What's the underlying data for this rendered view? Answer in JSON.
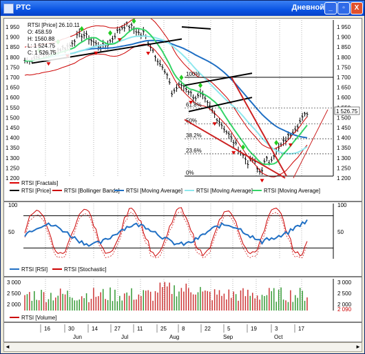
{
  "window": {
    "title": "РТС",
    "mode_label": "Дневной",
    "minimize": "_",
    "restore": "▫",
    "close": "X"
  },
  "colors": {
    "price": "#000000",
    "bollinger": "#cc0000",
    "ma_blue": "#1f6fc4",
    "ma_cyan": "#8ee8ee",
    "ma_green": "#33d466",
    "fractal": "#dd0000",
    "fractal_up": "#22cc22",
    "rsi": "#1f6fc4",
    "stoch": "#cc0000",
    "vol_up": "#339933",
    "vol_down": "#cc3333"
  },
  "price_panel": {
    "info_lines": [
      "RTSI [Price] 26.10.11",
      "O: 458.59",
      "H: 1560.88",
      "L: 1 524.75",
      "C: 1 526.75"
    ],
    "y_ticks": [
      "1 950",
      "1 900",
      "1 850",
      "1 800",
      "1 750",
      "1 700",
      "1 650",
      "1 600",
      "1 550",
      "1 500",
      "1 450",
      "1 400",
      "1 350",
      "1 300",
      "1 250",
      "1 200"
    ],
    "last_price": "1 526.75",
    "fib_labels": [
      "100%",
      "61.8%",
      "50%",
      "38.2%",
      "23.6%",
      "0%"
    ],
    "legend": [
      {
        "label": "RTSI [Fractals]",
        "color": "#dd0000"
      },
      {
        "label": "RTSI [Price]",
        "color": "#000000"
      },
      {
        "label": "RTSI [Bollinger Bands]",
        "color": "#cc0000"
      },
      {
        "label": "RTSI [Moving Average]",
        "color": "#1f6fc4"
      },
      {
        "label": "RTSI [Moving Average]",
        "color": "#8ee8ee"
      },
      {
        "label": "RTSI [Moving Average]",
        "color": "#33d466"
      }
    ]
  },
  "rsi_panel": {
    "y_ticks": [
      "100",
      "50",
      "0"
    ],
    "legend": [
      {
        "label": "RTSI [RSI]",
        "color": "#1f6fc4"
      },
      {
        "label": "RTSI [Stochastic]",
        "color": "#cc0000"
      }
    ]
  },
  "volume_panel": {
    "y_ticks": [
      "3 000",
      "2 500",
      "2 000"
    ],
    "last_value": "2 090",
    "legend": [
      {
        "label": "RTSI [Volume]",
        "color": "#cc0000"
      }
    ]
  },
  "date_axis": {
    "days": [
      "16",
      "30",
      "14",
      "27",
      "11",
      "25",
      "8",
      "22",
      "5",
      "19",
      "3",
      "17"
    ],
    "months": [
      "Jun",
      "Jul",
      "Aug",
      "Sep",
      "Oct"
    ]
  },
  "scrollbar": {
    "left": "◄",
    "right": "►"
  }
}
